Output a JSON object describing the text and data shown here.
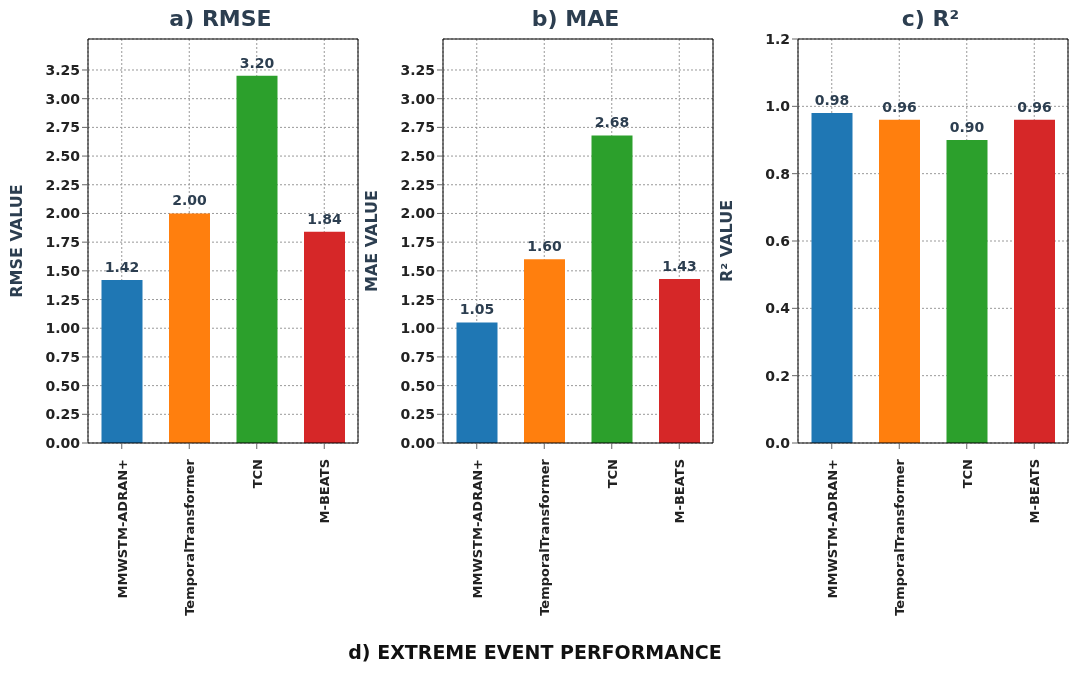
{
  "chart_data": [
    {
      "type": "bar",
      "title": "a) RMSE",
      "ylabel": "RMSE VALUE",
      "categories": [
        "MMWSTM-ADRAN+",
        "TemporalTransformer",
        "TCN",
        "M-BEATS"
      ],
      "values": [
        1.42,
        2.0,
        3.2,
        1.84
      ],
      "colors": [
        "#1f77b4",
        "#ff7f0e",
        "#2ca02c",
        "#d62728"
      ],
      "value_labels": [
        "1.42",
        "2.00",
        "3.20",
        "1.84"
      ],
      "ylim": [
        0,
        3.52
      ],
      "yticks": [
        {
          "value": 0,
          "label": "0.00"
        },
        {
          "value": 0.25,
          "label": "0.25"
        },
        {
          "value": 0.5,
          "label": "0.50"
        },
        {
          "value": 0.75,
          "label": "0.75"
        },
        {
          "value": 1,
          "label": "1.00"
        },
        {
          "value": 1.25,
          "label": "1.25"
        },
        {
          "value": 1.5,
          "label": "1.50"
        },
        {
          "value": 1.75,
          "label": "1.75"
        },
        {
          "value": 2,
          "label": "2.00"
        },
        {
          "value": 2.25,
          "label": "2.25"
        },
        {
          "value": 2.5,
          "label": "2.50"
        },
        {
          "value": 2.75,
          "label": "2.75"
        },
        {
          "value": 3,
          "label": "3.00"
        },
        {
          "value": 3.25,
          "label": "3.25"
        }
      ],
      "grid": true
    },
    {
      "type": "bar",
      "title": "b) MAE",
      "ylabel": "MAE VALUE",
      "categories": [
        "MMWSTM-ADRAN+",
        "TemporalTransformer",
        "TCN",
        "M-BEATS"
      ],
      "values": [
        1.05,
        1.6,
        2.68,
        1.43
      ],
      "colors": [
        "#1f77b4",
        "#ff7f0e",
        "#2ca02c",
        "#d62728"
      ],
      "value_labels": [
        "1.05",
        "1.60",
        "2.68",
        "1.43"
      ],
      "ylim": [
        0,
        3.52
      ],
      "yticks": [
        {
          "value": 0,
          "label": "0.00"
        },
        {
          "value": 0.25,
          "label": "0.25"
        },
        {
          "value": 0.5,
          "label": "0.50"
        },
        {
          "value": 0.75,
          "label": "0.75"
        },
        {
          "value": 1,
          "label": "1.00"
        },
        {
          "value": 1.25,
          "label": "1.25"
        },
        {
          "value": 1.5,
          "label": "1.50"
        },
        {
          "value": 1.75,
          "label": "1.75"
        },
        {
          "value": 2,
          "label": "2.00"
        },
        {
          "value": 2.25,
          "label": "2.25"
        },
        {
          "value": 2.5,
          "label": "2.50"
        },
        {
          "value": 2.75,
          "label": "2.75"
        },
        {
          "value": 3,
          "label": "3.00"
        },
        {
          "value": 3.25,
          "label": "3.25"
        }
      ],
      "grid": true
    },
    {
      "type": "bar",
      "title": "c) R²",
      "ylabel": "R² VALUE",
      "categories": [
        "MMWSTM-ADRAN+",
        "TemporalTransformer",
        "TCN",
        "M-BEATS"
      ],
      "values": [
        0.98,
        0.96,
        0.9,
        0.96
      ],
      "colors": [
        "#1f77b4",
        "#ff7f0e",
        "#2ca02c",
        "#d62728"
      ],
      "value_labels": [
        "0.98",
        "0.96",
        "0.90",
        "0.96"
      ],
      "ylim": [
        0,
        1.2
      ],
      "yticks": [
        {
          "value": 0,
          "label": "0.0"
        },
        {
          "value": 0.2,
          "label": "0.2"
        },
        {
          "value": 0.4,
          "label": "0.4"
        },
        {
          "value": 0.6,
          "label": "0.6"
        },
        {
          "value": 0.8,
          "label": "0.8"
        },
        {
          "value": 1,
          "label": "1.0"
        },
        {
          "value": 1.2,
          "label": "1.2"
        }
      ],
      "grid": true,
      "annotations": [
        "d) EXTREME EVENT PERFORMANCE"
      ]
    }
  ]
}
